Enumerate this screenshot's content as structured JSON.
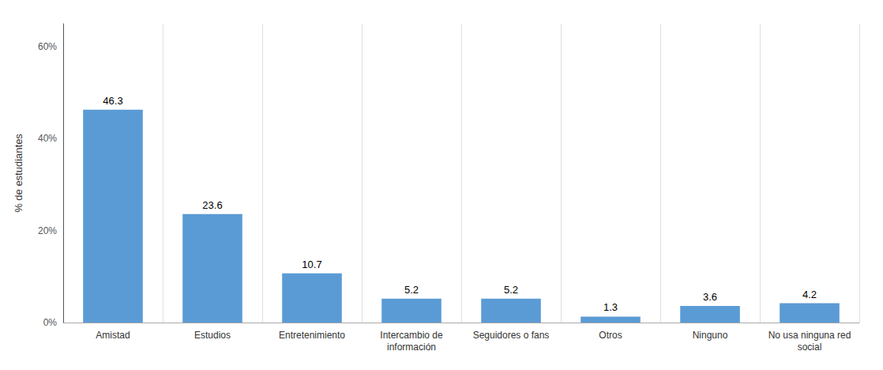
{
  "chart_data": {
    "type": "bar",
    "categories": [
      "Amistad",
      "Estudios",
      "Entretenimiento",
      "Intercambio de\ninformación",
      "Seguidores o fans",
      "Otros",
      "Ninguno",
      "No usa ninguna red\nsocial"
    ],
    "values": [
      46.3,
      23.6,
      10.7,
      5.2,
      5.2,
      1.3,
      3.6,
      4.2
    ],
    "color": "#5b9bd5",
    "ylabel": "% de estudiantes",
    "ylim": [
      0,
      65
    ],
    "yticks": [
      {
        "value": 0,
        "label": "0%"
      },
      {
        "value": 20,
        "label": "20%"
      },
      {
        "value": 40,
        "label": "40%"
      },
      {
        "value": 60,
        "label": "60%"
      }
    ],
    "grid": true,
    "data_labels": true
  }
}
